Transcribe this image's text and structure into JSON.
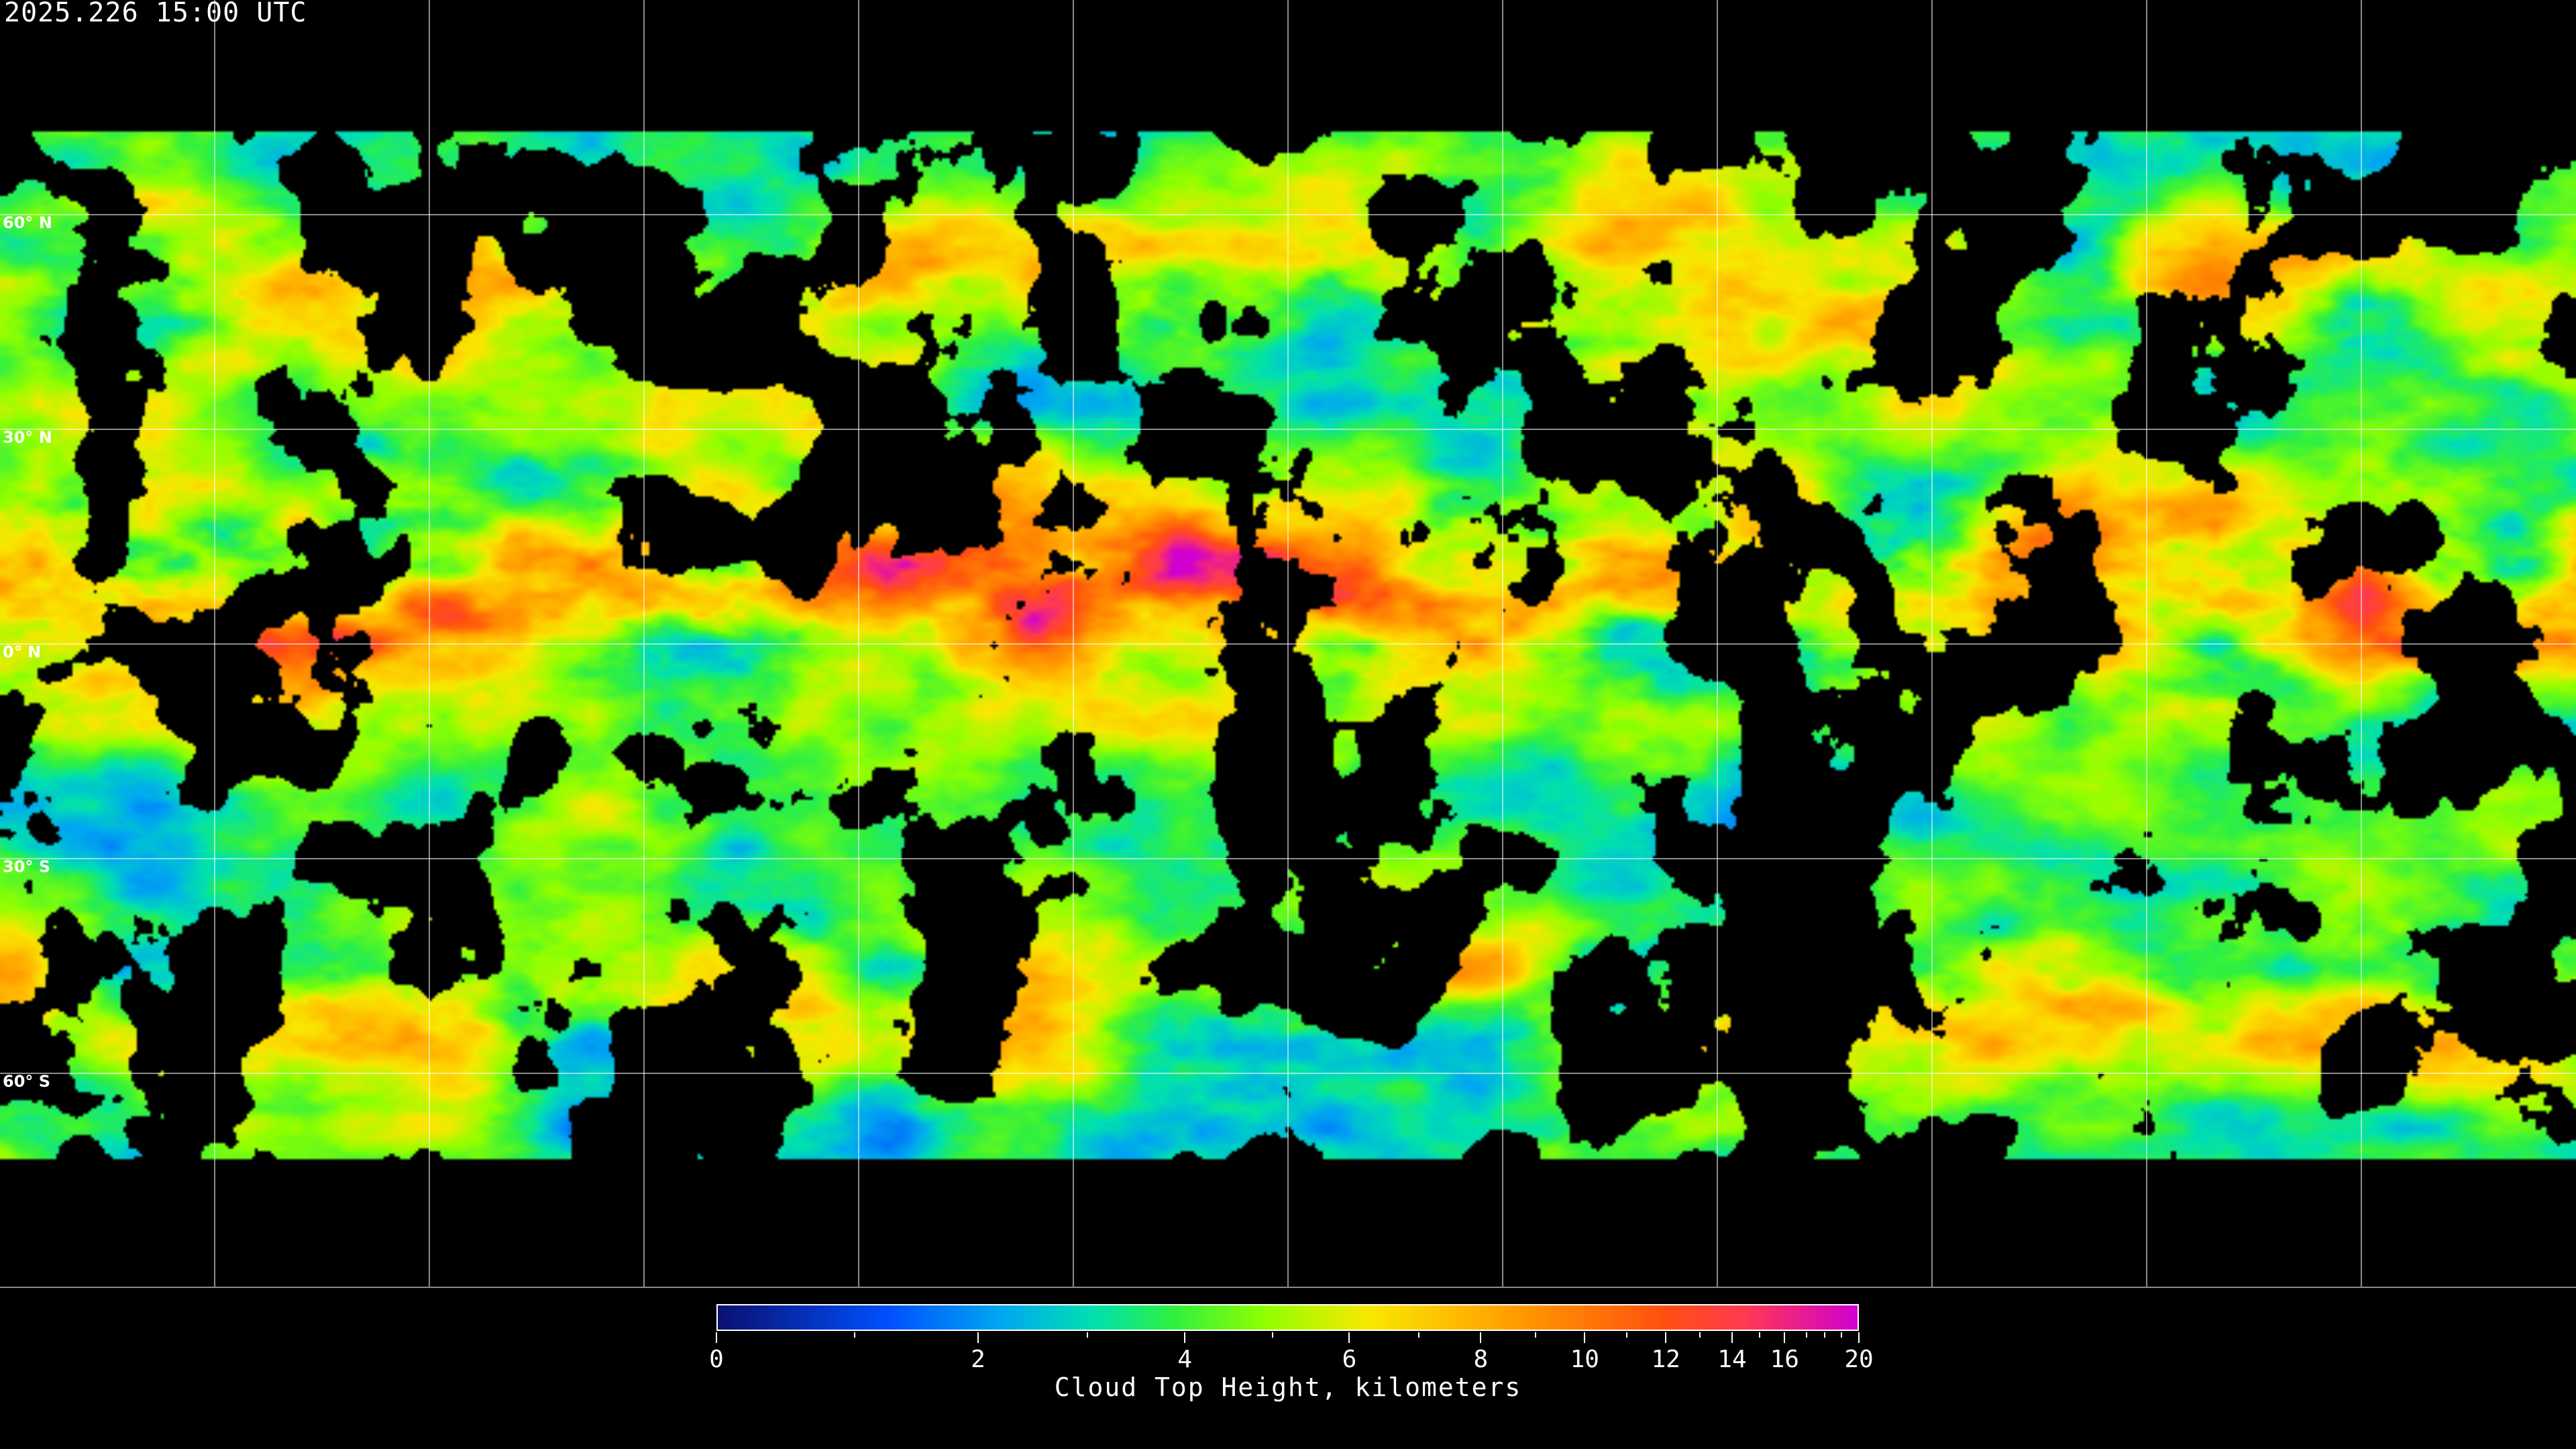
{
  "title": "2025.226 15:00 UTC",
  "map": {
    "projection": "equirectangular",
    "latitude_labels": [
      "60° N",
      "30° N",
      "0° N",
      "30° S",
      "60° S"
    ],
    "latitude_values": [
      60,
      30,
      0,
      -30,
      -60
    ],
    "longitude_gridlines_deg": [
      -150,
      -120,
      -90,
      -60,
      -30,
      0,
      30,
      60,
      90,
      120,
      150
    ],
    "gridline_color": "#ffffff",
    "coastline_color": "#ffffff",
    "no_data_color": "#000000"
  },
  "colorbar": {
    "label": "Cloud Top Height, kilometers",
    "min": 0,
    "max": 20,
    "major_ticks": [
      0,
      2,
      4,
      6,
      8,
      10,
      12,
      14,
      16,
      20
    ],
    "major_tick_labels": [
      "0",
      "2",
      "4",
      "6",
      "8",
      "10",
      "12",
      "14",
      "16",
      "20"
    ],
    "minor_ticks": [
      1,
      3,
      5,
      7,
      9,
      11,
      13,
      15,
      17,
      18,
      19
    ],
    "colormap": [
      "#0a1070",
      "#0050ff",
      "#00a8f0",
      "#00e0b0",
      "#30f040",
      "#90ff00",
      "#f8e800",
      "#ffc000",
      "#ff9000",
      "#ff5010",
      "#ff3a50",
      "#d000d0"
    ]
  }
}
